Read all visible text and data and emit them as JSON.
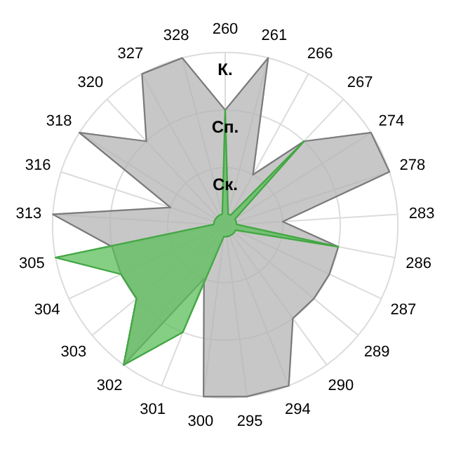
{
  "chart_data": {
    "type": "radar",
    "categories": [
      "260",
      "261",
      "266",
      "267",
      "274",
      "278",
      "283",
      "286",
      "287",
      "289",
      "290",
      "294",
      "295",
      "300",
      "301",
      "302",
      "303",
      "304",
      "305",
      "313",
      "316",
      "318",
      "320",
      "327",
      "328"
    ],
    "ylim": [
      0,
      3
    ],
    "yticks": [
      {
        "value": 1,
        "label": "Ск."
      },
      {
        "value": 2,
        "label": "Сп."
      },
      {
        "value": 3,
        "label": "К."
      }
    ],
    "grid": true,
    "series": [
      {
        "color": "#b4b4b4",
        "values": [
          2,
          3,
          1,
          2,
          3,
          3,
          1,
          2,
          2,
          2,
          2,
          3,
          3,
          3,
          1,
          3,
          2,
          2,
          2,
          3,
          1,
          3,
          2,
          3,
          3
        ]
      },
      {
        "color": "#5cbf5c",
        "values": [
          2,
          0.2,
          0.2,
          2,
          0.2,
          0.2,
          0.2,
          2,
          0.2,
          0.2,
          0.2,
          0.2,
          0.2,
          0.2,
          2,
          3,
          2,
          2,
          3,
          0.2,
          0.2,
          0.2,
          0.2,
          0.2,
          0.2
        ]
      }
    ]
  }
}
